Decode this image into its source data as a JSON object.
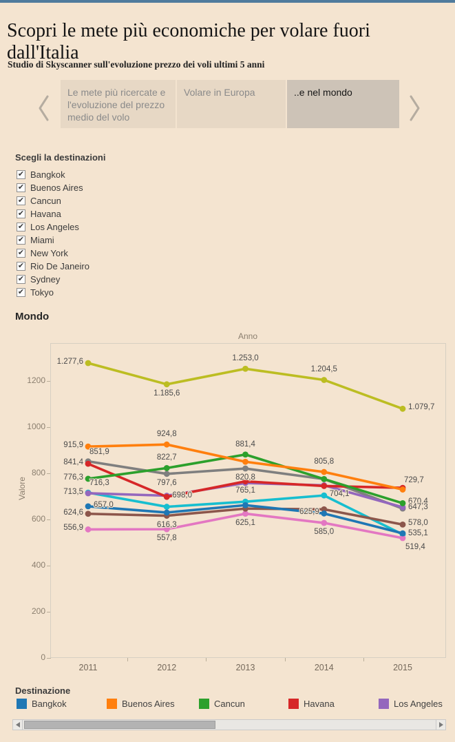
{
  "page": {
    "title": "Scopri le mete più economiche per volare fuori dall'Italia",
    "subtitle": "Studio di Skyscanner sull'evoluzione prezzo dei voli ultimi 5 anni"
  },
  "tabs": {
    "items": [
      {
        "label": "Le mete più ricercate e l'evoluzione del prezzo medio del volo",
        "active": false
      },
      {
        "label": "Volare in Europa",
        "active": false
      },
      {
        "label": "..e nel mondo",
        "active": true
      }
    ]
  },
  "filters": {
    "title": "Scegli la destinazioni",
    "options": [
      {
        "label": "Bangkok",
        "checked": true
      },
      {
        "label": "Buenos Aires",
        "checked": true
      },
      {
        "label": "Cancun",
        "checked": true
      },
      {
        "label": "Havana",
        "checked": true
      },
      {
        "label": "Los Angeles",
        "checked": true
      },
      {
        "label": "Miami",
        "checked": true
      },
      {
        "label": "New York",
        "checked": true
      },
      {
        "label": "Rio De Janeiro",
        "checked": true
      },
      {
        "label": "Sydney",
        "checked": true
      },
      {
        "label": "Tokyo",
        "checked": true
      }
    ]
  },
  "chart_data": {
    "type": "line",
    "title": "Mondo",
    "x_axis_title": "Anno",
    "x_axis_title_position": "top",
    "y_axis_title": "Valore",
    "x": [
      2011,
      2012,
      2013,
      2014,
      2015
    ],
    "ylim": [
      0,
      1360
    ],
    "yticks": [
      0,
      200,
      400,
      600,
      800,
      1000,
      1200
    ],
    "grid": false,
    "legend_position": "bottom",
    "series": [
      {
        "name": "Bangkok",
        "color": "#1f77b4",
        "values": [
          657.0,
          630,
          662,
          625.9,
          540
        ],
        "labels": [
          "657,0",
          null,
          null,
          "625,9",
          null
        ],
        "label_pos": [
          "right",
          null,
          null,
          "left",
          null
        ]
      },
      {
        "name": "Buenos Aires",
        "color": "#ff7f0e",
        "values": [
          915.9,
          924.8,
          850,
          805.8,
          729.7
        ],
        "labels": [
          "915,9",
          "924,8",
          null,
          "805,8",
          "729,7"
        ],
        "label_pos": [
          "left",
          "above",
          null,
          "above",
          "above-right"
        ]
      },
      {
        "name": "Cancun",
        "color": "#2ca02c",
        "values": [
          776.3,
          822.7,
          881.4,
          775,
          670.4
        ],
        "labels": [
          "776,3",
          "822,7",
          "881,4",
          null,
          "670,4"
        ],
        "label_pos": [
          "left",
          "above",
          "above",
          null,
          "right"
        ]
      },
      {
        "name": "Havana",
        "color": "#d62728",
        "values": [
          841.4,
          698.0,
          765.1,
          745,
          737
        ],
        "labels": [
          "841,4",
          "698,0",
          "765,1",
          null,
          null
        ],
        "label_pos": [
          "left",
          "right",
          "below",
          null,
          null
        ]
      },
      {
        "name": "Los Angeles",
        "color": "#9467bd",
        "values": [
          713.5,
          703,
          758,
          748,
          653
        ],
        "labels": [
          "713,5",
          null,
          null,
          null,
          null
        ],
        "label_pos": [
          "left",
          null,
          null,
          null,
          null
        ]
      },
      {
        "name": "Miami",
        "color": "#8c564b",
        "values": [
          624.6,
          616.3,
          647,
          644,
          578.0
        ],
        "labels": [
          "624,6",
          "616,3",
          null,
          null,
          "578,0"
        ],
        "label_pos": [
          "left",
          "below",
          null,
          null,
          "right"
        ]
      },
      {
        "name": "New York",
        "color": "#e377c2",
        "values": [
          556.9,
          557.8,
          625.1,
          585.0,
          519.4
        ],
        "labels": [
          "556,9",
          "557,8",
          "625,1",
          "585,0",
          "519,4"
        ],
        "label_pos": [
          "left",
          "below",
          "below",
          "below",
          "below-right"
        ]
      },
      {
        "name": "Rio De Janeiro",
        "color": "#7f7f7f",
        "values": [
          851.9,
          797.6,
          820.8,
          775,
          647.3
        ],
        "labels": [
          "851,9",
          "797,6",
          "820,8",
          null,
          "647,3"
        ],
        "label_pos": [
          "above-right",
          "below",
          "below",
          null,
          "right"
        ]
      },
      {
        "name": "Sydney",
        "color": "#bcbd22",
        "values": [
          1277.6,
          1185.6,
          1253.0,
          1204.5,
          1079.7
        ],
        "labels": [
          "1.277,6",
          "1.185,6",
          "1.253,0",
          "1.204,5",
          "1.079,7"
        ],
        "label_pos": [
          "left",
          "below",
          "above",
          "above",
          "right"
        ]
      },
      {
        "name": "Tokyo",
        "color": "#17becf",
        "values": [
          716.3,
          655,
          677,
          704.1,
          535.1
        ],
        "labels": [
          "716,3",
          null,
          null,
          "704,1",
          "535,1"
        ],
        "label_pos": [
          "above-right",
          null,
          null,
          "right",
          "right"
        ]
      }
    ]
  },
  "legend": {
    "title": "Destinazione",
    "visible_items": [
      "Bangkok",
      "Buenos Aires",
      "Cancun",
      "Havana",
      "Los Angeles"
    ]
  },
  "colors": {
    "background": "#f4e4d0",
    "top_bar": "#4f7b9d",
    "tab_active_bg": "#cdc3b7",
    "tab_inactive_bg": "#e7d8c5"
  }
}
